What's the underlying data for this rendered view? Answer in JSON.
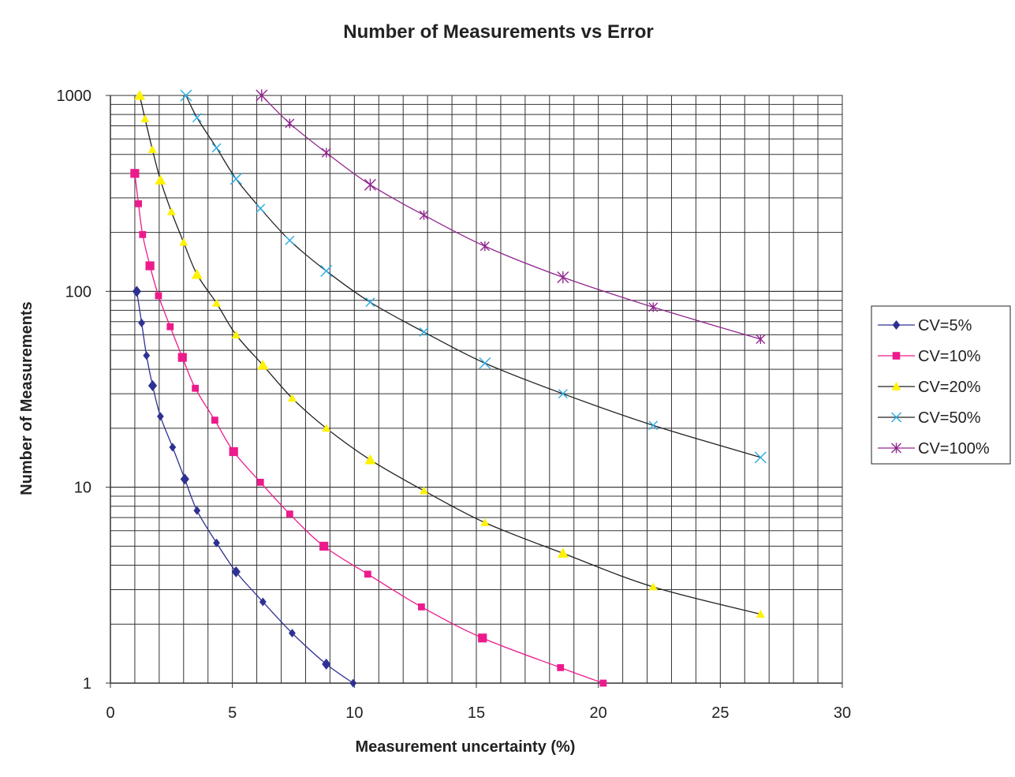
{
  "chart_data": {
    "type": "line",
    "title": "Number of Measurements vs Error",
    "xlabel": "Measurement uncertainty (%)",
    "ylabel": "Number of Measurements",
    "xlim": [
      0,
      30
    ],
    "ylim": [
      1,
      1000
    ],
    "y_scale": "log",
    "grid": true,
    "legend_position": "right",
    "x_ticks": [
      "0",
      "5",
      "10",
      "15",
      "20",
      "25",
      "30"
    ],
    "y_ticks": [
      "1",
      "10",
      "100",
      "1000"
    ],
    "series": [
      {
        "name": "CV=5%",
        "color": "#2e3192",
        "marker": "diamond",
        "points": [
          [
            1.08,
            100
          ],
          [
            1.28,
            69
          ],
          [
            1.48,
            47
          ],
          [
            1.73,
            33
          ],
          [
            2.05,
            23
          ],
          [
            2.55,
            16
          ],
          [
            3.05,
            11
          ],
          [
            3.55,
            7.6
          ],
          [
            4.35,
            5.2
          ],
          [
            5.15,
            3.7
          ],
          [
            6.25,
            2.6
          ],
          [
            7.45,
            1.8
          ],
          [
            8.85,
            1.25
          ],
          [
            9.95,
            1.0
          ]
        ]
      },
      {
        "name": "CV=10%",
        "color": "#ec1b8c",
        "marker": "square",
        "points": [
          [
            1.0,
            400
          ],
          [
            1.15,
            280
          ],
          [
            1.32,
            195
          ],
          [
            1.62,
            135
          ],
          [
            1.97,
            95
          ],
          [
            2.45,
            66
          ],
          [
            2.95,
            46
          ],
          [
            3.48,
            32
          ],
          [
            4.28,
            22
          ],
          [
            5.05,
            15.2
          ],
          [
            6.15,
            10.6
          ],
          [
            7.35,
            7.3
          ],
          [
            8.75,
            5.0
          ],
          [
            10.55,
            3.6
          ],
          [
            12.75,
            2.45
          ],
          [
            15.25,
            1.7
          ],
          [
            18.45,
            1.2
          ],
          [
            20.2,
            1.0
          ]
        ]
      },
      {
        "name": "CV=20%",
        "color": "#fff200",
        "line_color": "#222222",
        "marker": "triangle",
        "points": [
          [
            1.2,
            1000
          ],
          [
            1.42,
            760
          ],
          [
            1.72,
            530
          ],
          [
            2.05,
            370
          ],
          [
            2.5,
            255
          ],
          [
            3.0,
            178
          ],
          [
            3.55,
            122
          ],
          [
            4.35,
            87
          ],
          [
            5.15,
            60
          ],
          [
            6.25,
            42
          ],
          [
            7.45,
            28.5
          ],
          [
            8.85,
            20
          ],
          [
            10.65,
            13.8
          ],
          [
            12.85,
            9.6
          ],
          [
            15.35,
            6.6
          ],
          [
            18.55,
            4.6
          ],
          [
            22.25,
            3.1
          ],
          [
            26.65,
            2.25
          ]
        ]
      },
      {
        "name": "CV=50%",
        "color": "#29abe2",
        "line_color": "#222222",
        "marker": "x",
        "points": [
          [
            3.1,
            1000
          ],
          [
            3.55,
            770
          ],
          [
            4.35,
            540
          ],
          [
            5.15,
            375
          ],
          [
            6.15,
            265
          ],
          [
            7.35,
            182
          ],
          [
            8.85,
            127
          ],
          [
            10.65,
            88
          ],
          [
            12.85,
            62
          ],
          [
            15.35,
            43
          ],
          [
            18.55,
            30
          ],
          [
            22.25,
            20.7
          ],
          [
            26.65,
            14.2
          ]
        ]
      },
      {
        "name": "CV=100%",
        "color": "#92278f",
        "marker": "star",
        "points": [
          [
            6.2,
            1000
          ],
          [
            7.35,
            720
          ],
          [
            8.85,
            510
          ],
          [
            10.65,
            350
          ],
          [
            12.85,
            245
          ],
          [
            15.35,
            170
          ],
          [
            18.55,
            118
          ],
          [
            22.25,
            83
          ],
          [
            26.65,
            57
          ]
        ]
      }
    ]
  }
}
